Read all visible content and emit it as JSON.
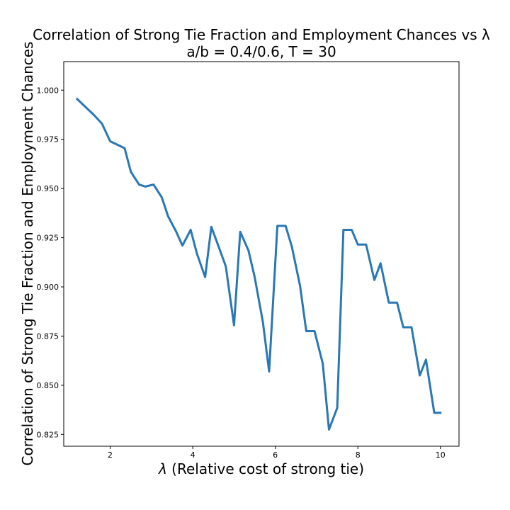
{
  "chart_data": {
    "type": "line",
    "title": "Correlation of Strong Tie Fraction and Employment Chances vs λ",
    "subtitle": "a/b = 0.4/0.6, T = 30",
    "xlabel_symbol": "λ",
    "xlabel_text": " (Relative cost of strong tie)",
    "ylabel": "Correlation of Strong Tie Fraction and Employment Chances",
    "xlim": [
      0.875,
      10.45
    ],
    "ylim": [
      0.819,
      1.0145
    ],
    "x_ticks": [
      2,
      4,
      6,
      8,
      10
    ],
    "y_ticks": [
      0.825,
      0.85,
      0.875,
      0.9,
      0.925,
      0.95,
      0.975,
      1.0
    ],
    "x_tick_labels": [
      "2",
      "4",
      "6",
      "8",
      "10"
    ],
    "y_tick_labels": [
      "0.825",
      "0.850",
      "0.875",
      "0.900",
      "0.925",
      "0.950",
      "0.975",
      "1.000"
    ],
    "grid": false,
    "line_color": "#2977b4",
    "series": [
      {
        "x": [
          1.2,
          1.4,
          1.6,
          1.8,
          2.0,
          2.2,
          2.35,
          2.5,
          2.7,
          2.85,
          3.05,
          3.25,
          3.4,
          3.6,
          3.75,
          3.95,
          4.1,
          4.3,
          4.45,
          4.6,
          4.8,
          5.0,
          5.15,
          5.35,
          5.5,
          5.7,
          5.85,
          6.05,
          6.25,
          6.4,
          6.6,
          6.75,
          6.95,
          7.15,
          7.3,
          7.5,
          7.65,
          7.85,
          8.0,
          8.2,
          8.4,
          8.55,
          8.75,
          8.95,
          9.1,
          9.3,
          9.5,
          9.65,
          9.85,
          10.0
        ],
        "y": [
          0.9955,
          0.9915,
          0.9875,
          0.983,
          0.974,
          0.972,
          0.9705,
          0.9585,
          0.952,
          0.951,
          0.952,
          0.9455,
          0.936,
          0.928,
          0.921,
          0.929,
          0.917,
          0.905,
          0.9305,
          0.922,
          0.9105,
          0.8805,
          0.928,
          0.9185,
          0.905,
          0.882,
          0.857,
          0.931,
          0.931,
          0.9205,
          0.9005,
          0.8775,
          0.8775,
          0.861,
          0.8275,
          0.8385,
          0.929,
          0.929,
          0.9215,
          0.9215,
          0.9035,
          0.912,
          0.892,
          0.892,
          0.8795,
          0.8795,
          0.855,
          0.863,
          0.836,
          0.836
        ]
      }
    ]
  }
}
